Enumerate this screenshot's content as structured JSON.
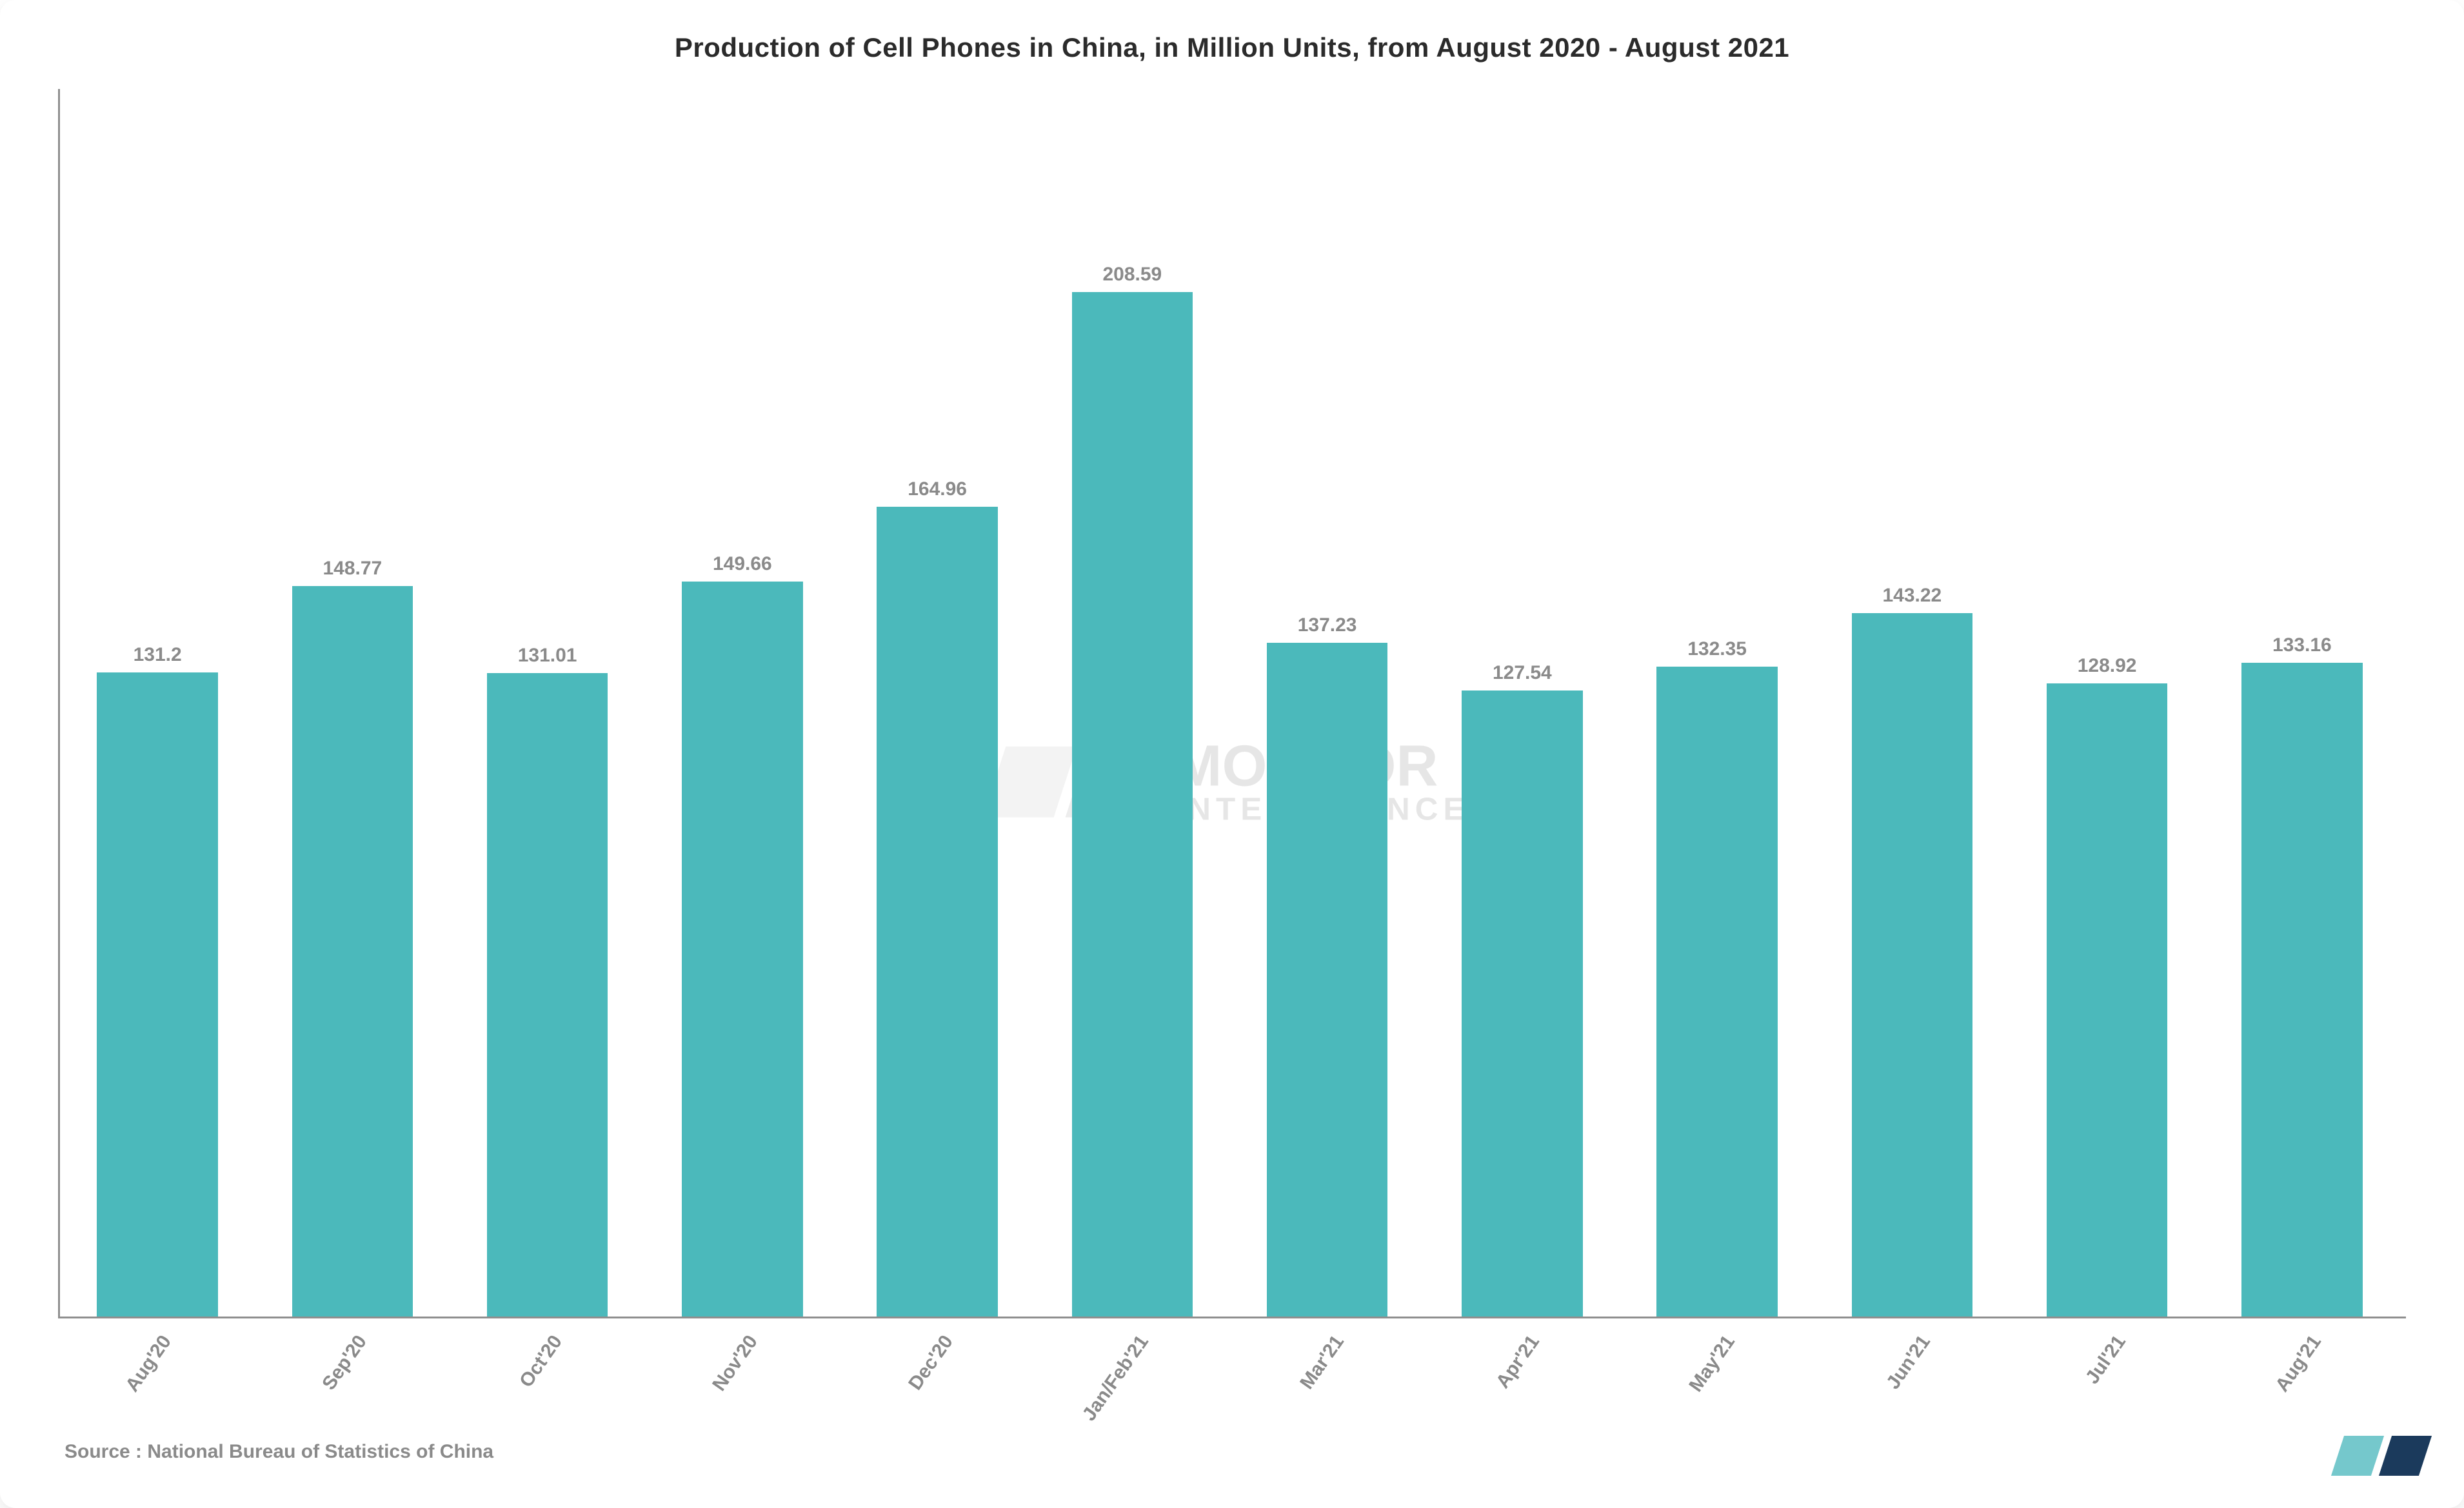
{
  "chart": {
    "type": "bar",
    "title": "Production of Cell Phones in China, in Million Units, from August 2020 - August 2021",
    "title_fontsize": 42,
    "title_color": "#2b2b2b",
    "categories": [
      "Aug'20",
      "Sep'20",
      "Oct'20",
      "Nov'20",
      "Dec'20",
      "Jan/Feb'21",
      "Mar'21",
      "Apr'21",
      "May'21",
      "Jun'21",
      "Jul'21",
      "Aug'21"
    ],
    "values": [
      131.2,
      148.77,
      131.01,
      149.66,
      164.96,
      208.59,
      137.23,
      127.54,
      132.35,
      143.22,
      128.92,
      133.16
    ],
    "bar_color": "#4bb9bb",
    "background_color": "#ffffff",
    "axis_color": "#8f8f8f",
    "label_color": "#8a8a8a",
    "value_fontsize": 30,
    "tick_fontsize": 30,
    "bar_width_pct": 62,
    "y_max": 250,
    "source_label": "Source :",
    "source_text": "National Bureau of Statistics of China",
    "source_fontsize": 30
  },
  "watermark": {
    "line1": "MORDOR",
    "line2": "INTELLIGENCE",
    "fontsize": 90,
    "color1": "#bfbfbf",
    "color2": "#9f9f9f"
  },
  "logo": {
    "color1": "#75c8cc",
    "color2": "#1b3a5c"
  }
}
